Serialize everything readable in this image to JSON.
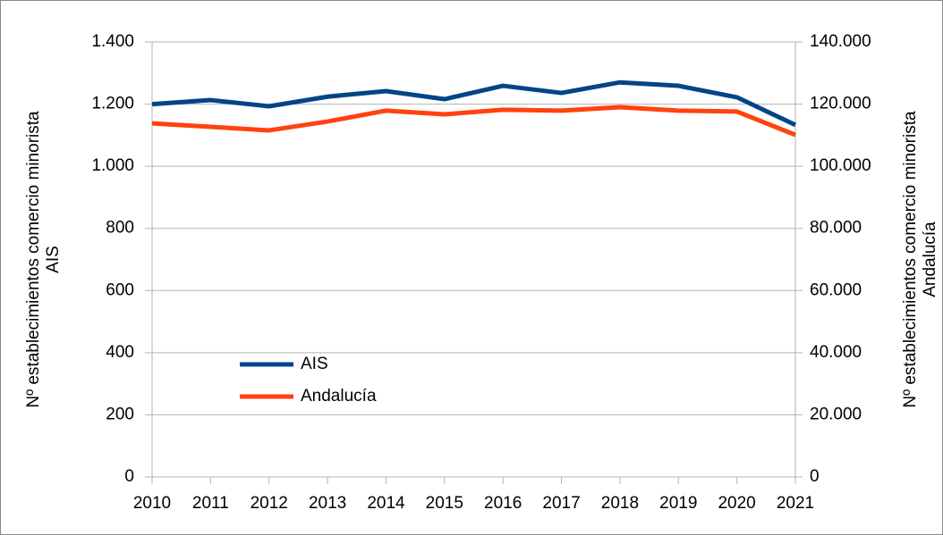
{
  "chart_data": {
    "type": "line",
    "x": [
      2010,
      2011,
      2012,
      2013,
      2014,
      2015,
      2016,
      2017,
      2018,
      2019,
      2020,
      2021
    ],
    "xlim": [
      2010,
      2021
    ],
    "xticks": [
      2010,
      2011,
      2012,
      2013,
      2014,
      2015,
      2016,
      2017,
      2018,
      2019,
      2020,
      2021
    ],
    "series": [
      {
        "name": "AIS",
        "color": "#004586",
        "values": [
          1200,
          1213,
          1193,
          1224,
          1242,
          1216,
          1259,
          1236,
          1270,
          1259,
          1222,
          1133
        ]
      },
      {
        "name": "Andalucía",
        "color": "#ff420e",
        "axis": "y2",
        "values": [
          113800,
          112700,
          111550,
          114400,
          117900,
          116700,
          118200,
          117900,
          119000,
          117900,
          117600,
          110100
        ]
      }
    ],
    "ylim": [
      0,
      1400
    ],
    "yticks": [
      0,
      200,
      400,
      600,
      800,
      {
        "value": 1000,
        "label": "1.000"
      },
      {
        "value": 1200,
        "label": "1.200"
      },
      {
        "value": 1400,
        "label": "1.400"
      }
    ],
    "y2lim": [
      0,
      140000
    ],
    "y2ticks": [
      0,
      {
        "value": 20000,
        "label": "20.000"
      },
      {
        "value": 40000,
        "label": "40.000"
      },
      {
        "value": 60000,
        "label": "60.000"
      },
      {
        "value": 80000,
        "label": "80.000"
      },
      {
        "value": 100000,
        "label": "100.000"
      },
      {
        "value": 120000,
        "label": "120.000"
      },
      {
        "value": 140000,
        "label": "140.000"
      }
    ],
    "y_label": [
      "Nº establecimientos comercio minorista",
      "AIS"
    ],
    "y2_label": [
      "Nº establecimientos comercio minorista",
      "Andalucía"
    ],
    "grid": true,
    "legend": "inside"
  }
}
